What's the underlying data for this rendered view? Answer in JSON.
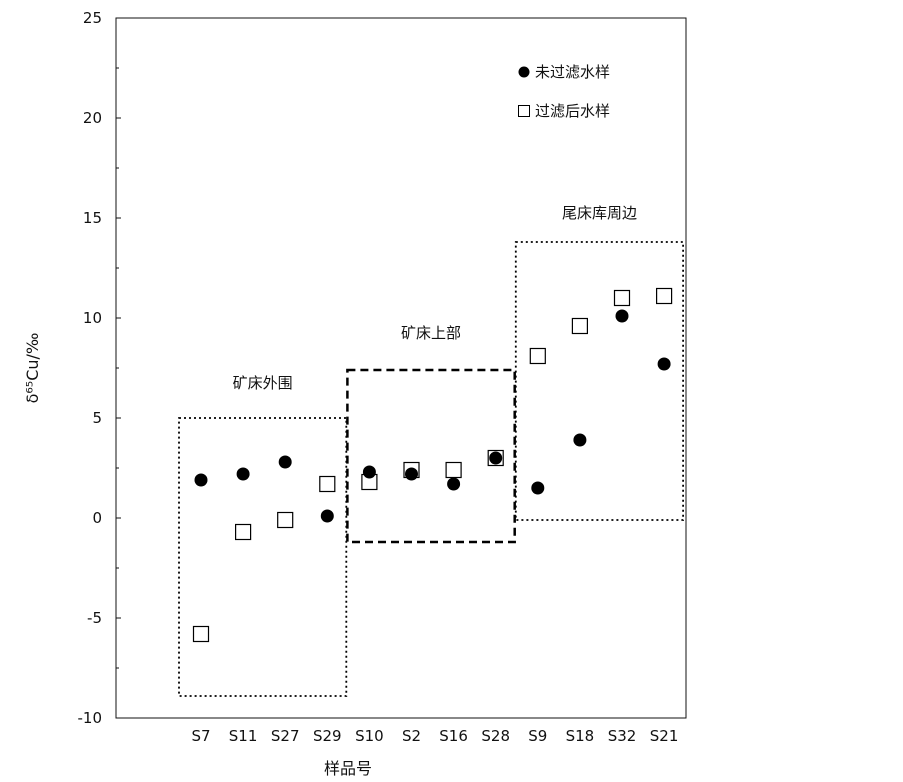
{
  "chart_data": {
    "type": "scatter",
    "title": "",
    "xlabel": "样品号",
    "ylabel": "δ⁶⁵Cu/‰",
    "ylim": [
      -10,
      25
    ],
    "yticks": [
      -10,
      -5,
      0,
      5,
      10,
      15,
      20,
      25
    ],
    "ytick_labels": [
      "-10",
      "-5",
      "0",
      "5",
      "10",
      "15",
      "20",
      "25"
    ],
    "categories": [
      "S7",
      "S11",
      "S27",
      "S29",
      "S10",
      "S2",
      "S16",
      "S28",
      "S9",
      "S18",
      "S32",
      "S21"
    ],
    "grid": false,
    "legend_position": "top-right",
    "series": [
      {
        "name": "未过滤水样",
        "marker": "filled-circle",
        "color": "#000000",
        "values": [
          1.9,
          2.2,
          2.8,
          0.1,
          2.3,
          2.2,
          1.7,
          3.0,
          1.5,
          3.9,
          10.1,
          7.7
        ]
      },
      {
        "name": "过滤后水样",
        "marker": "open-square",
        "color": "#000000",
        "values": [
          -5.8,
          -0.7,
          -0.1,
          1.7,
          1.8,
          2.4,
          2.4,
          3.0,
          8.1,
          9.6,
          11.0,
          11.1
        ]
      }
    ],
    "groups": [
      {
        "label": "矿床外围",
        "style": "dotted",
        "first": 0,
        "last": 3,
        "y_range": [
          -8.9,
          5.0
        ]
      },
      {
        "label": "矿床上部",
        "style": "dashed",
        "first": 4,
        "last": 7,
        "y_range": [
          -1.2,
          7.4
        ]
      },
      {
        "label": "尾床库周边",
        "style": "dotted",
        "first": 8,
        "last": 11,
        "y_range": [
          -0.1,
          13.8
        ]
      }
    ]
  }
}
